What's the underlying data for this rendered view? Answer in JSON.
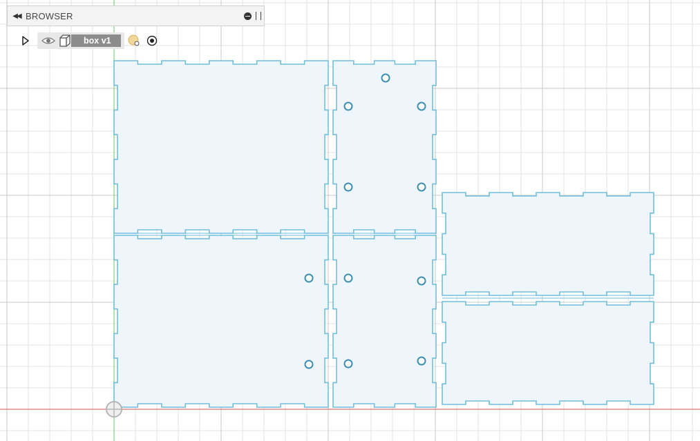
{
  "browser": {
    "title": "BROWSER",
    "collapse_glyph": "◀◀",
    "icons": [
      "collapse-icon",
      "minus-icon",
      "pin-icon"
    ]
  },
  "tree": {
    "node": {
      "label": "box v1",
      "icons": [
        "expand-arrow-icon",
        "eye-icon",
        "component-box-icon",
        "component-activate-icon",
        "radio-target-icon"
      ]
    }
  },
  "colors": {
    "background": "#ffffff",
    "grid_minor": "#e3e3e3",
    "grid_major": "#c9c9c9",
    "axis_x": "#e07070",
    "axis_y": "#7fd17f",
    "panel_fill": "#eef6fb",
    "panel_stroke": "#6ebedc",
    "hole_stroke": "#3c8fb0",
    "label_bg": "#8c8c8c"
  }
}
